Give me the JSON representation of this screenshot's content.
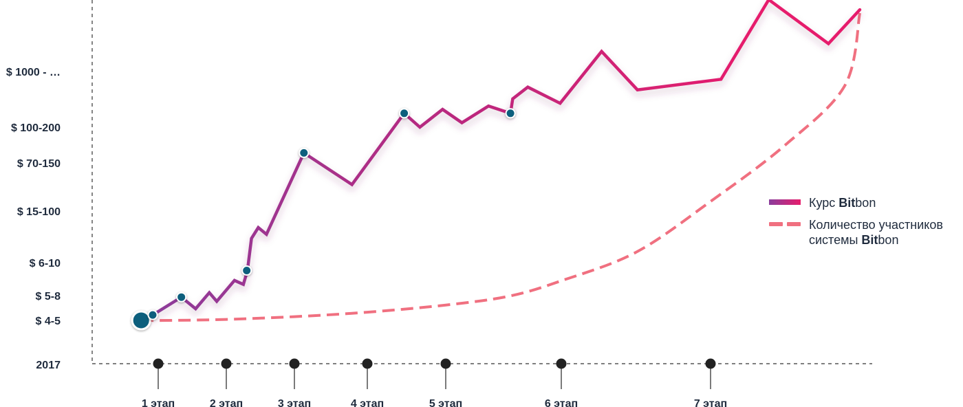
{
  "chart_data": {
    "type": "line",
    "x_axis_start_label": "2017",
    "stages": [
      "1 этап",
      "2 этап",
      "3 этап",
      "4 этап",
      "5 этап",
      "6 этап",
      "7 этап"
    ],
    "y_tick_labels": [
      "$ 1000 - …",
      "$ 100-200",
      "$ 70-150",
      "$ 15-100",
      "$ 6-10",
      "$ 5-8",
      "$ 4-5"
    ],
    "series": [
      {
        "name": "Курс Bitbon",
        "style": "solid",
        "colors": [
          "#8a3d9c",
          "#d4237a",
          "#e61d6c"
        ],
        "points": [
          [
            0.38,
            0.0
          ],
          [
            0.8,
            0.22
          ],
          [
            1.34,
            0.94
          ],
          [
            1.55,
            0.47
          ],
          [
            1.75,
            1.09
          ],
          [
            1.86,
            0.77
          ],
          [
            2.12,
            1.46
          ],
          [
            2.25,
            1.34
          ],
          [
            2.31,
            1.76
          ],
          [
            2.37,
            2.47
          ],
          [
            2.47,
            2.68
          ],
          [
            2.59,
            2.55
          ],
          [
            3.13,
            4.28
          ],
          [
            3.79,
            3.55
          ],
          [
            4.47,
            5.25
          ],
          [
            4.67,
            5.0
          ],
          [
            4.96,
            5.32
          ],
          [
            5.14,
            5.08
          ],
          [
            5.37,
            5.38
          ],
          [
            5.56,
            5.25
          ],
          [
            5.58,
            5.51
          ],
          [
            5.71,
            5.72
          ],
          [
            5.99,
            5.43
          ],
          [
            6.27,
            6.36
          ],
          [
            6.51,
            5.67
          ],
          [
            7.07,
            5.86
          ],
          [
            7.39,
            7.29
          ],
          [
            7.79,
            6.5
          ],
          [
            8.28,
            7.11
          ]
        ],
        "markers": [
          [
            0.38,
            0.0
          ],
          [
            0.8,
            0.22
          ],
          [
            1.34,
            0.94
          ],
          [
            2.3,
            1.76
          ],
          [
            3.13,
            4.28
          ],
          [
            4.47,
            5.25
          ],
          [
            5.56,
            5.25
          ]
        ]
      },
      {
        "name": "Количество участников системы Bitbon",
        "style": "dashed",
        "color": "#f07080",
        "points": [
          [
            0.38,
            0.0
          ],
          [
            1.2,
            0.0
          ],
          [
            2.0,
            0.04
          ],
          [
            3.0,
            0.15
          ],
          [
            4.0,
            0.33
          ],
          [
            5.0,
            0.62
          ],
          [
            5.55,
            0.98
          ],
          [
            6.0,
            1.45
          ],
          [
            6.5,
            2.2
          ],
          [
            7.0,
            3.2
          ],
          [
            7.5,
            4.5
          ],
          [
            7.9,
            5.75
          ],
          [
            8.3,
            7.05
          ]
        ]
      }
    ],
    "legend": {
      "placement": "right",
      "items": [
        {
          "prefix": "Курс ",
          "bold": "Bit",
          "suffix": "bon",
          "style": "solid"
        },
        {
          "prefix": "Количество участников\nсистемы ",
          "bold": "Bit",
          "suffix": "bon",
          "style": "dashed"
        }
      ]
    },
    "grid": false
  }
}
